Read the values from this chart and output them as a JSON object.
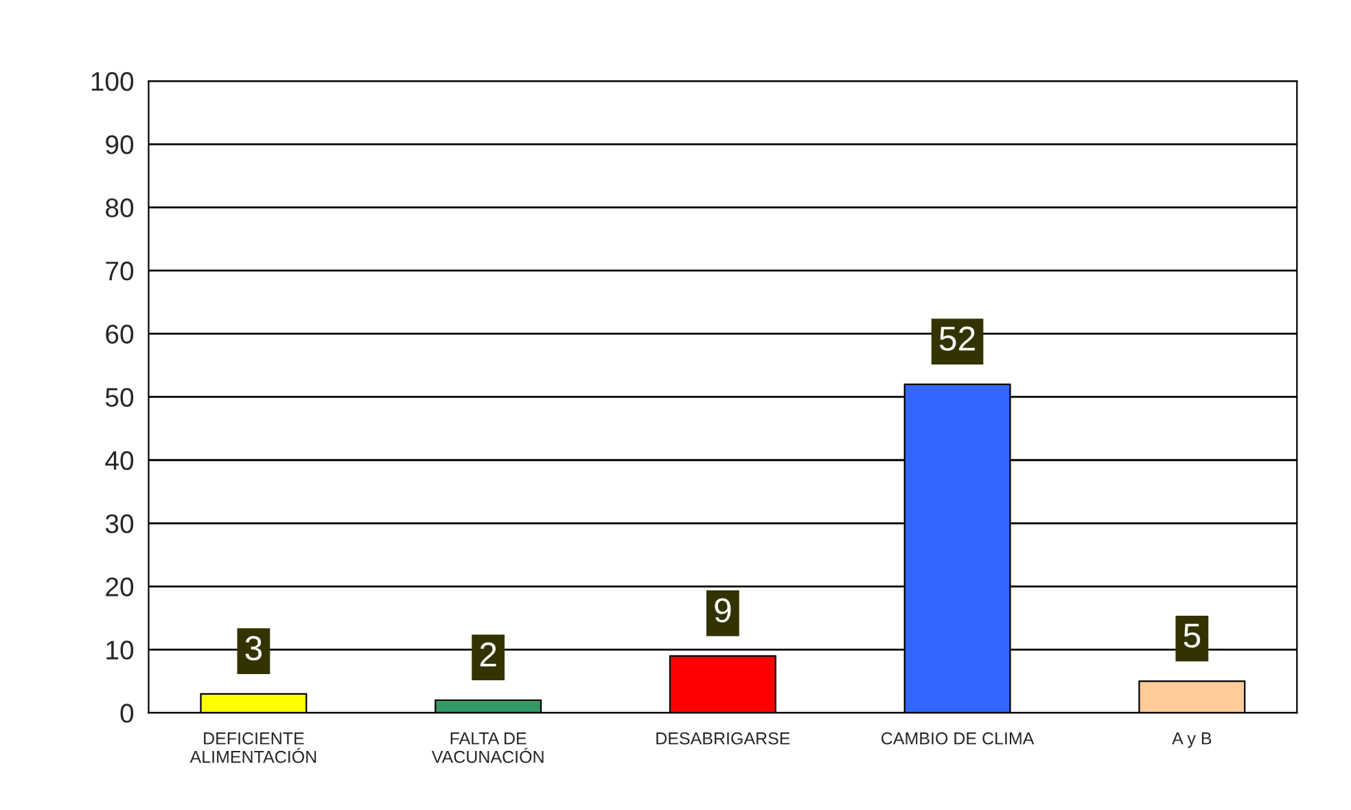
{
  "chart_data": {
    "type": "bar",
    "categories": [
      "DEFICIENTE\nALIMENTACIÓN",
      "FALTA DE\nVACUNACIÓN",
      "DESABRIGARSE",
      "CAMBIO DE CLIMA",
      "A y B"
    ],
    "values": [
      3,
      2,
      9,
      52,
      5
    ],
    "colors": [
      "#ffff00",
      "#339966",
      "#ff0000",
      "#3366ff",
      "#ffcc99"
    ],
    "ylim": [
      0,
      100
    ],
    "yticks": [
      0,
      10,
      20,
      30,
      40,
      50,
      60,
      70,
      80,
      90,
      100
    ],
    "grid": "y",
    "data_labels": true
  }
}
